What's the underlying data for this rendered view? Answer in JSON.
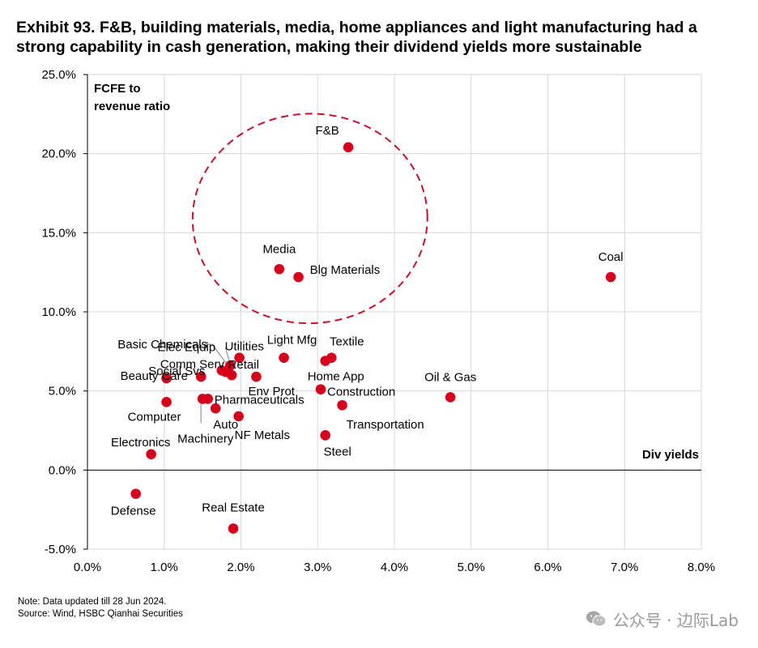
{
  "title_lines": [
    "Exhibit 93. F&B, building materials, media, home appliances and light manufacturing had a",
    "strong capability in cash generation, making their dividend yields more sustainable"
  ],
  "colors": {
    "point": "#d6001c",
    "ellipse": "#c8102e",
    "grid": "#d9d9d9",
    "axis": "#000000"
  },
  "chart_data": {
    "type": "scatter",
    "title": "Exhibit 93. F&B, building materials, media, home appliances and light manufacturing had a strong capability in cash generation, making their dividend yields more sustainable",
    "xlabel": "Div yields",
    "ylabel": "FCFE to revenue ratio",
    "ylabel_lines": [
      "FCFE to",
      "revenue ratio"
    ],
    "xlim": [
      0,
      8
    ],
    "ylim": [
      -5,
      25
    ],
    "grid": true,
    "x_ticks": [
      {
        "value": 0,
        "label": "0.0%"
      },
      {
        "value": 1,
        "label": "1.0%"
      },
      {
        "value": 2,
        "label": "2.0%"
      },
      {
        "value": 3,
        "label": "3.0%"
      },
      {
        "value": 4,
        "label": "4.0%"
      },
      {
        "value": 5,
        "label": "5.0%"
      },
      {
        "value": 6,
        "label": "6.0%"
      },
      {
        "value": 7,
        "label": "7.0%"
      },
      {
        "value": 8,
        "label": "8.0%"
      }
    ],
    "y_ticks": [
      {
        "value": -5,
        "label": "-5.0%"
      },
      {
        "value": 0,
        "label": "0.0%"
      },
      {
        "value": 5,
        "label": "5.0%"
      },
      {
        "value": 10,
        "label": "10.0%"
      },
      {
        "value": 15,
        "label": "15.0%"
      },
      {
        "value": 20,
        "label": "20.0%"
      },
      {
        "value": 25,
        "label": "25.0%"
      }
    ],
    "points": [
      {
        "name": "F&B",
        "x": 3.4,
        "y": 20.4
      },
      {
        "name": "Media",
        "x": 2.5,
        "y": 12.7
      },
      {
        "name": "Blg Materials",
        "x": 2.75,
        "y": 12.2
      },
      {
        "name": "Coal",
        "x": 6.82,
        "y": 12.2
      },
      {
        "name": "Light Mfg",
        "x": 2.56,
        "y": 7.1
      },
      {
        "name": "Textile",
        "x": 3.18,
        "y": 7.1
      },
      {
        "name": "Home App",
        "x": 3.1,
        "y": 6.9
      },
      {
        "name": "Basic Chemicals",
        "x": 1.88,
        "y": 6.0
      },
      {
        "name": "Elec Equip",
        "x": 1.86,
        "y": 6.6
      },
      {
        "name": "Utilities",
        "x": 1.98,
        "y": 7.1
      },
      {
        "name": "Comm Serv",
        "x": 1.75,
        "y": 6.3
      },
      {
        "name": "Retail",
        "x": 1.8,
        "y": 6.2
      },
      {
        "name": "Beauty Care",
        "x": 1.03,
        "y": 5.8
      },
      {
        "name": "Social Svs",
        "x": 1.48,
        "y": 5.9
      },
      {
        "name": "Env Prot",
        "x": 2.2,
        "y": 5.9
      },
      {
        "name": "Oil & Gas",
        "x": 4.73,
        "y": 4.6
      },
      {
        "name": "Construction",
        "x": 3.04,
        "y": 5.1
      },
      {
        "name": "Computer",
        "x": 1.03,
        "y": 4.3
      },
      {
        "name": "Pharmaceuticals",
        "x": 1.57,
        "y": 4.5
      },
      {
        "name": "Machinery",
        "x": 1.5,
        "y": 4.5
      },
      {
        "name": "Auto",
        "x": 1.67,
        "y": 3.9
      },
      {
        "name": "Transportation",
        "x": 3.32,
        "y": 4.1
      },
      {
        "name": "NF Metals",
        "x": 1.97,
        "y": 3.4
      },
      {
        "name": "Steel",
        "x": 3.1,
        "y": 2.2
      },
      {
        "name": "Electronics",
        "x": 0.83,
        "y": 1.0
      },
      {
        "name": "Defense",
        "x": 0.63,
        "y": -1.5
      },
      {
        "name": "Real Estate",
        "x": 1.9,
        "y": -3.7
      }
    ],
    "highlight_ellipse": {
      "center_x": 2.9,
      "center_y": 15.9,
      "radius_x": 1.53,
      "radius_y": 6.62,
      "rotation_deg": -2
    }
  },
  "footer": {
    "note": "Note: Data updated till 28 Jun 2024.",
    "source": "Source: Wind, HSBC Qianhai Securities"
  },
  "watermark": {
    "text": "公众号 · 边际Lab",
    "icon": "wechat-icon"
  }
}
